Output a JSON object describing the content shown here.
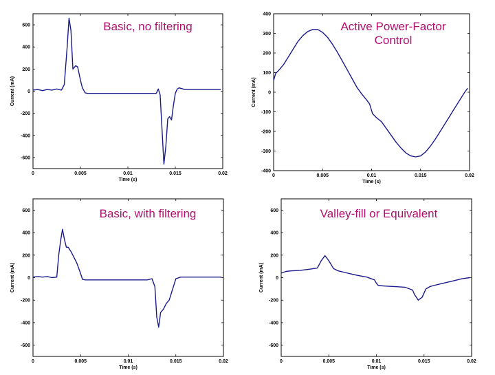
{
  "chart_data": [
    {
      "type": "line",
      "title": "Basic, no filtering",
      "xlabel": "Time (s)",
      "ylabel": "Current (mA)",
      "xlim": [
        0,
        0.02
      ],
      "ylim": [
        -700,
        700
      ],
      "xticks": [
        "0",
        "0.005",
        "0.01",
        "0.015",
        "0.02"
      ],
      "xtick_values": [
        0,
        0.005,
        0.01,
        0.015,
        0.02
      ],
      "yticks": [
        "600",
        "400",
        "200",
        "0",
        "-200",
        "-400",
        "-600"
      ],
      "ytick_values": [
        600,
        400,
        200,
        0,
        -200,
        -400,
        -600
      ],
      "line_color": "#1a1a8c",
      "series": [
        {
          "x": [
            0,
            0.0005,
            0.001,
            0.0015,
            0.002,
            0.0025,
            0.003,
            0.0033,
            0.0036,
            0.0038,
            0.004,
            0.0042,
            0.0045,
            0.0047,
            0.005,
            0.0052,
            0.0055,
            0.0057,
            0.006,
            0.007,
            0.008,
            0.009,
            0.01,
            0.011,
            0.012,
            0.013,
            0.0132,
            0.0134,
            0.0136,
            0.0138,
            0.014,
            0.0142,
            0.0144,
            0.0146,
            0.0148,
            0.015,
            0.0152,
            0.0154,
            0.016,
            0.017,
            0.018,
            0.019,
            0.0198
          ],
          "y": [
            10,
            15,
            5,
            15,
            10,
            20,
            10,
            60,
            400,
            660,
            550,
            200,
            230,
            220,
            100,
            30,
            -15,
            -20,
            -20,
            -20,
            -20,
            -20,
            -20,
            -20,
            -20,
            -20,
            20,
            -30,
            -350,
            -660,
            -500,
            -250,
            -230,
            -260,
            -130,
            -20,
            20,
            30,
            15,
            15,
            15,
            15,
            15
          ]
        }
      ]
    },
    {
      "type": "line",
      "title": "Active Power-Factor Control",
      "xlabel": "Time (s)",
      "ylabel": "Current (mA)",
      "xlim": [
        0,
        0.02
      ],
      "ylim": [
        -400,
        400
      ],
      "xticks": [
        "0",
        "0.005",
        "0.01",
        "0.015",
        "0.02"
      ],
      "xtick_values": [
        0,
        0.005,
        0.01,
        0.015,
        0.02
      ],
      "yticks": [
        "400",
        "300",
        "200",
        "100",
        "0",
        "-100",
        "-200",
        "-300",
        "-400"
      ],
      "ytick_values": [
        400,
        300,
        200,
        100,
        0,
        -100,
        -200,
        -300,
        -400
      ],
      "line_color": "#1a1a8c",
      "series": [
        {
          "x": [
            0,
            0.0002,
            0.0005,
            0.001,
            0.0015,
            0.002,
            0.0025,
            0.003,
            0.0035,
            0.004,
            0.0045,
            0.005,
            0.0055,
            0.006,
            0.0065,
            0.007,
            0.0075,
            0.008,
            0.0085,
            0.009,
            0.0095,
            0.0098,
            0.0101,
            0.0105,
            0.011,
            0.0115,
            0.012,
            0.0125,
            0.013,
            0.0135,
            0.014,
            0.0145,
            0.015,
            0.0155,
            0.016,
            0.0165,
            0.017,
            0.0175,
            0.018,
            0.0185,
            0.019,
            0.0195,
            0.0198
          ],
          "y": [
            60,
            95,
            110,
            140,
            180,
            220,
            260,
            290,
            310,
            320,
            320,
            305,
            280,
            245,
            205,
            160,
            115,
            70,
            25,
            -10,
            -40,
            -60,
            -110,
            -130,
            -150,
            -185,
            -220,
            -255,
            -285,
            -310,
            -325,
            -330,
            -325,
            -305,
            -275,
            -240,
            -200,
            -160,
            -120,
            -80,
            -40,
            0,
            20
          ]
        }
      ]
    },
    {
      "type": "line",
      "title": "Basic, with filtering",
      "xlabel": "Time (s)",
      "ylabel": "Current (mA)",
      "xlim": [
        0,
        0.02
      ],
      "ylim": [
        -700,
        700
      ],
      "xticks": [
        "0",
        "0.005",
        "0.01",
        "0.015",
        "0.02"
      ],
      "xtick_values": [
        0,
        0.005,
        0.01,
        0.015,
        0.02
      ],
      "yticks": [
        "600",
        "400",
        "200",
        "0",
        "-200",
        "-400",
        "-600"
      ],
      "ytick_values": [
        600,
        400,
        200,
        0,
        -200,
        -400,
        -600
      ],
      "line_color": "#1a1a8c",
      "series": [
        {
          "x": [
            0,
            0.0005,
            0.001,
            0.0015,
            0.002,
            0.0025,
            0.0027,
            0.0029,
            0.0031,
            0.0033,
            0.0035,
            0.0037,
            0.004,
            0.0043,
            0.0046,
            0.0049,
            0.0052,
            0.0055,
            0.006,
            0.007,
            0.008,
            0.009,
            0.01,
            0.011,
            0.012,
            0.0125,
            0.0128,
            0.013,
            0.0132,
            0.0134,
            0.0137,
            0.014,
            0.0143,
            0.0146,
            0.015,
            0.0155,
            0.016,
            0.017,
            0.018,
            0.019,
            0.0198
          ],
          "y": [
            5,
            10,
            5,
            10,
            0,
            5,
            200,
            330,
            430,
            340,
            270,
            270,
            230,
            180,
            130,
            60,
            -15,
            -20,
            -20,
            -20,
            -20,
            -20,
            -20,
            -20,
            -20,
            -10,
            -80,
            -350,
            -440,
            -310,
            -280,
            -230,
            -200,
            -120,
            -10,
            5,
            5,
            5,
            5,
            5,
            5
          ]
        }
      ]
    },
    {
      "type": "line",
      "title": "Valley-fill or Equivalent",
      "xlabel": "Time (s)",
      "ylabel": "Current (mA)",
      "xlim": [
        0,
        0.02
      ],
      "ylim": [
        -700,
        700
      ],
      "xticks": [
        "0",
        "0.005",
        "0.01",
        "0.015",
        "0.02"
      ],
      "xtick_values": [
        0,
        0.005,
        0.01,
        0.015,
        0.02
      ],
      "yticks": [
        "600",
        "400",
        "200",
        "0",
        "-200",
        "-400",
        "-600"
      ],
      "ytick_values": [
        600,
        400,
        200,
        0,
        -200,
        -400,
        -600
      ],
      "line_color": "#1a1a8c",
      "series": [
        {
          "x": [
            0,
            0.0005,
            0.001,
            0.002,
            0.003,
            0.0038,
            0.0042,
            0.0046,
            0.005,
            0.0055,
            0.006,
            0.007,
            0.008,
            0.009,
            0.0098,
            0.01,
            0.0102,
            0.011,
            0.012,
            0.013,
            0.0138,
            0.014,
            0.0144,
            0.0148,
            0.0152,
            0.0156,
            0.016,
            0.017,
            0.018,
            0.019,
            0.0198
          ],
          "y": [
            40,
            55,
            60,
            65,
            75,
            85,
            150,
            195,
            150,
            80,
            60,
            40,
            20,
            5,
            -20,
            -50,
            -70,
            -75,
            -80,
            -85,
            -110,
            -150,
            -200,
            -175,
            -100,
            -80,
            -70,
            -50,
            -30,
            -10,
            0
          ]
        }
      ]
    }
  ]
}
